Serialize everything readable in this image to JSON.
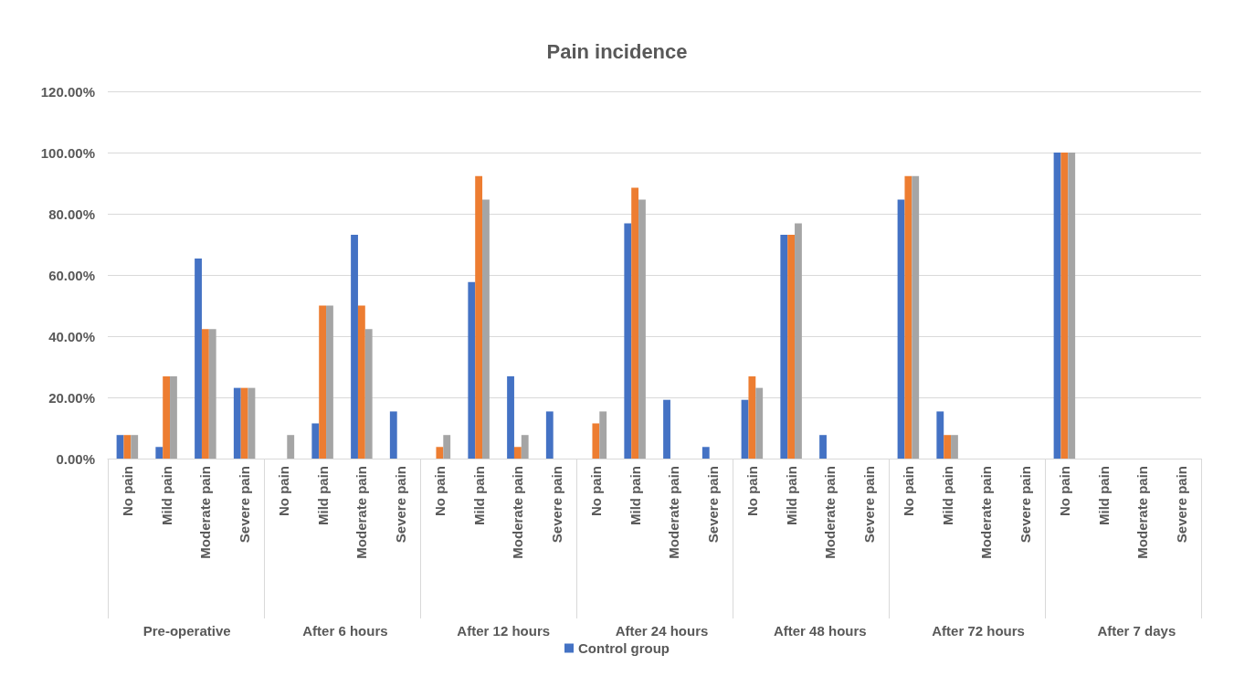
{
  "chart_data": {
    "type": "bar",
    "title": "Pain incidence",
    "categories": [
      "No pain",
      "Mild pain",
      "Moderate pain",
      "Severe pain",
      "No pain",
      "Mild pain",
      "Moderate pain",
      "Severe pain",
      "No pain",
      "Mild pain",
      "Moderate pain",
      "Severe pain",
      "No pain",
      "Mild pain",
      "Moderate pain",
      "Severe pain",
      "No pain",
      "Mild pain",
      "Moderate pain",
      "Severe pain",
      "No pain",
      "Mild pain",
      "Moderate pain",
      "Severe pain",
      "No pain",
      "Mild pain",
      "Moderate pain",
      "Severe pain"
    ],
    "annotations": [
      "Pre-operative",
      "After 6 hours",
      "After 12 hours",
      "After 24 hours",
      "After 48 hours",
      "After 72 hours",
      "After 7 days"
    ],
    "series": [
      {
        "name": "Control group",
        "color": "#4472c4",
        "values": [
          7.7,
          3.8,
          65.4,
          23.1,
          0,
          11.5,
          73.1,
          15.4,
          0,
          57.7,
          26.9,
          15.4,
          0,
          76.9,
          19.2,
          3.8,
          19.2,
          73.1,
          7.7,
          0,
          84.6,
          15.4,
          0,
          0,
          100,
          0,
          0,
          0
        ]
      },
      {
        "color": "#ed7d31",
        "values": [
          7.7,
          26.9,
          42.3,
          23.1,
          0,
          50,
          50,
          0,
          3.8,
          92.3,
          3.8,
          0,
          11.5,
          88.5,
          0,
          0,
          26.9,
          73.1,
          0,
          0,
          92.3,
          7.7,
          0,
          0,
          100,
          0,
          0,
          0
        ]
      },
      {
        "color": "#a5a5a5",
        "values": [
          7.7,
          26.9,
          42.3,
          23.1,
          7.7,
          50,
          42.3,
          0,
          7.7,
          84.6,
          7.7,
          0,
          15.4,
          84.6,
          0,
          0,
          23.1,
          76.9,
          0,
          0,
          92.3,
          7.7,
          0,
          0,
          100,
          0,
          0,
          0
        ]
      }
    ],
    "ylim": [
      0,
      120
    ],
    "yticks": [
      {
        "value": 0,
        "label": "0.00%"
      },
      {
        "value": 20,
        "label": "20.00%"
      },
      {
        "value": 40,
        "label": "40.00%"
      },
      {
        "value": 60,
        "label": "60.00%"
      },
      {
        "value": 80,
        "label": "80.00%"
      },
      {
        "value": 100,
        "label": "100.00%"
      },
      {
        "value": 120,
        "label": "120.00%"
      }
    ],
    "grid": "y",
    "legend": "bottom"
  }
}
